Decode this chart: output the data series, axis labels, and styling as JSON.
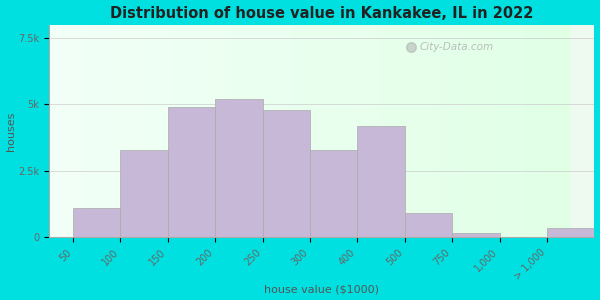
{
  "title": "Distribution of house value in Kankakee, IL in 2022",
  "xlabel": "house value ($1000)",
  "ylabel": "houses",
  "bin_edges": [
    0,
    1,
    2,
    3,
    4,
    5,
    6,
    7,
    8,
    9,
    10,
    11
  ],
  "tick_positions": [
    0,
    1,
    2,
    3,
    4,
    5,
    6,
    7,
    8,
    9,
    10
  ],
  "bar_labels": [
    "50",
    "100",
    "150",
    "200",
    "250",
    "300",
    "400",
    "500",
    "750",
    "1,000",
    "> 1,000"
  ],
  "bar_values": [
    1100,
    3300,
    4900,
    5200,
    4800,
    3300,
    4200,
    900,
    150,
    0,
    350
  ],
  "bar_color": "#c8b8d8",
  "bar_edge_color": "#aaaaaa",
  "bg_outer": "#00e0e0",
  "bg_plot": "#eefaf0",
  "title_color": "#222222",
  "axis_label_color": "#555555",
  "tick_label_color": "#666666",
  "ytick_labels": [
    "0",
    "2.5k",
    "5k",
    "7.5k"
  ],
  "ytick_values": [
    0,
    2500,
    5000,
    7500
  ],
  "ylim": [
    0,
    8000
  ],
  "grid_color": "#cccccc",
  "watermark": "City-Data.com"
}
